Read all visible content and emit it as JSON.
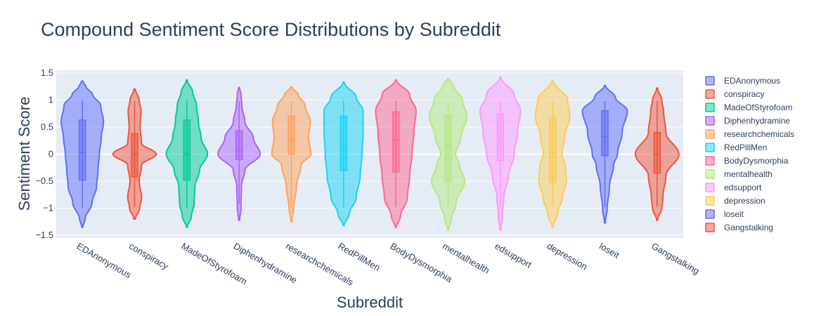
{
  "chart_data": {
    "type": "violin",
    "title": "Compound Sentiment Score Distributions by Subreddit",
    "xlabel": "Subreddit",
    "ylabel": "Sentiment Score",
    "ylim": [
      -1.55,
      1.55
    ],
    "yticks": [
      -1.5,
      -1,
      -0.5,
      0,
      0.5,
      1,
      1.5
    ],
    "ytick_labels": [
      "−1.5",
      "−1",
      "−0.5",
      "0",
      "0.5",
      "1",
      "1.5"
    ],
    "grid": true,
    "legend_position": "right",
    "categories": [
      "EDAnonymous",
      "conspiracy",
      "MadeOfStyrofoam",
      "Diphenhydramine",
      "researchchemicals",
      "RedPillMen",
      "BodyDysmorphia",
      "mentalhealth",
      "edsupport",
      "depression",
      "loseit",
      "Gangstalking"
    ],
    "series": [
      {
        "name": "EDAnonymous",
        "color": "#636efa",
        "min": -1,
        "q1": -0.48,
        "median": 0.03,
        "q3": 0.63,
        "max": 1,
        "kde_range": [
          -1.35,
          1.35
        ],
        "density": [
          [
            -1.35,
            0.02
          ],
          [
            -1.2,
            0.12
          ],
          [
            -0.9,
            0.42
          ],
          [
            -0.6,
            0.62
          ],
          [
            -0.3,
            0.68
          ],
          [
            0,
            0.74
          ],
          [
            0.3,
            0.82
          ],
          [
            0.6,
            0.92
          ],
          [
            0.9,
            0.8
          ],
          [
            1.1,
            0.45
          ],
          [
            1.25,
            0.15
          ],
          [
            1.35,
            0.02
          ]
        ]
      },
      {
        "name": "conspiracy",
        "color": "#ef553b",
        "min": -0.98,
        "q1": -0.42,
        "median": 0,
        "q3": 0.38,
        "max": 0.98,
        "kde_range": [
          -1.2,
          1.2
        ],
        "density": [
          [
            -1.2,
            0.03
          ],
          [
            -1,
            0.22
          ],
          [
            -0.8,
            0.3
          ],
          [
            -0.5,
            0.2
          ],
          [
            -0.2,
            0.3
          ],
          [
            0,
            0.95
          ],
          [
            0.2,
            0.3
          ],
          [
            0.5,
            0.24
          ],
          [
            0.8,
            0.28
          ],
          [
            1,
            0.2
          ],
          [
            1.2,
            0.03
          ]
        ]
      },
      {
        "name": "MadeOfStyrofoam",
        "color": "#00cc96",
        "min": -1,
        "q1": -0.48,
        "median": 0,
        "q3": 0.63,
        "max": 1,
        "kde_range": [
          -1.35,
          1.37
        ],
        "density": [
          [
            -1.35,
            0.02
          ],
          [
            -1.15,
            0.2
          ],
          [
            -0.9,
            0.32
          ],
          [
            -0.6,
            0.35
          ],
          [
            -0.3,
            0.55
          ],
          [
            0,
            0.9
          ],
          [
            0.3,
            0.62
          ],
          [
            0.6,
            0.5
          ],
          [
            0.9,
            0.42
          ],
          [
            1.15,
            0.25
          ],
          [
            1.37,
            0.02
          ]
        ]
      },
      {
        "name": "Diphenhydramine",
        "color": "#ab63fa",
        "min": -0.92,
        "q1": -0.1,
        "median": 0.07,
        "q3": 0.43,
        "max": 0.98,
        "kde_range": [
          -1.22,
          1.23
        ],
        "density": [
          [
            -1.22,
            0.02
          ],
          [
            -1,
            0.08
          ],
          [
            -0.6,
            0.1
          ],
          [
            -0.3,
            0.25
          ],
          [
            0,
            0.92
          ],
          [
            0.3,
            0.62
          ],
          [
            0.6,
            0.25
          ],
          [
            0.9,
            0.12
          ],
          [
            1.1,
            0.08
          ],
          [
            1.23,
            0.02
          ]
        ]
      },
      {
        "name": "researchchemicals",
        "color": "#ffa15a",
        "min": -0.98,
        "q1": 0,
        "median": 0.27,
        "q3": 0.7,
        "max": 0.98,
        "kde_range": [
          -1.25,
          1.24
        ],
        "density": [
          [
            -1.25,
            0.02
          ],
          [
            -1,
            0.1
          ],
          [
            -0.6,
            0.22
          ],
          [
            -0.2,
            0.42
          ],
          [
            0,
            0.85
          ],
          [
            0.3,
            0.75
          ],
          [
            0.6,
            0.82
          ],
          [
            0.9,
            0.6
          ],
          [
            1.1,
            0.3
          ],
          [
            1.24,
            0.02
          ]
        ]
      },
      {
        "name": "RedPillMen",
        "color": "#19d3f3",
        "min": -0.99,
        "q1": -0.3,
        "median": 0.15,
        "q3": 0.7,
        "max": 0.99,
        "kde_range": [
          -1.32,
          1.33
        ],
        "density": [
          [
            -1.32,
            0.02
          ],
          [
            -1.1,
            0.25
          ],
          [
            -0.8,
            0.55
          ],
          [
            -0.4,
            0.72
          ],
          [
            0,
            0.8
          ],
          [
            0.4,
            0.85
          ],
          [
            0.8,
            0.85
          ],
          [
            1.05,
            0.55
          ],
          [
            1.33,
            0.02
          ]
        ]
      },
      {
        "name": "BodyDysmorphia",
        "color": "#ff6692",
        "min": -0.98,
        "q1": -0.33,
        "median": 0.26,
        "q3": 0.78,
        "max": 0.99,
        "kde_range": [
          -1.35,
          1.37
        ],
        "density": [
          [
            -1.35,
            0.02
          ],
          [
            -1.15,
            0.2
          ],
          [
            -0.8,
            0.5
          ],
          [
            -0.4,
            0.6
          ],
          [
            0,
            0.7
          ],
          [
            0.4,
            0.78
          ],
          [
            0.8,
            0.88
          ],
          [
            1.1,
            0.6
          ],
          [
            1.37,
            0.02
          ]
        ]
      },
      {
        "name": "mentalhealth",
        "color": "#b6e880",
        "min": -0.98,
        "q1": -0.5,
        "median": 0.15,
        "q3": 0.72,
        "max": 0.98,
        "kde_range": [
          -1.4,
          1.4
        ],
        "density": [
          [
            -1.4,
            0.02
          ],
          [
            -1.2,
            0.15
          ],
          [
            -0.9,
            0.35
          ],
          [
            -0.5,
            0.72
          ],
          [
            -0.2,
            0.5
          ],
          [
            0,
            0.32
          ],
          [
            0.3,
            0.55
          ],
          [
            0.7,
            0.82
          ],
          [
            1,
            0.62
          ],
          [
            1.25,
            0.25
          ],
          [
            1.4,
            0.02
          ]
        ]
      },
      {
        "name": "edsupport",
        "color": "#ff97ff",
        "min": -0.98,
        "q1": -0.12,
        "median": 0.27,
        "q3": 0.74,
        "max": 0.99,
        "kde_range": [
          -1.4,
          1.42
        ],
        "density": [
          [
            -1.4,
            0.02
          ],
          [
            -1.15,
            0.08
          ],
          [
            -0.8,
            0.15
          ],
          [
            -0.4,
            0.35
          ],
          [
            0,
            0.6
          ],
          [
            0.4,
            0.75
          ],
          [
            0.8,
            0.88
          ],
          [
            1.1,
            0.6
          ],
          [
            1.42,
            0.02
          ]
        ]
      },
      {
        "name": "depression",
        "color": "#fecb52",
        "min": -0.98,
        "q1": -0.52,
        "median": 0.02,
        "q3": 0.67,
        "max": 0.98,
        "kde_range": [
          -1.35,
          1.36
        ],
        "density": [
          [
            -1.35,
            0.02
          ],
          [
            -1.1,
            0.22
          ],
          [
            -0.8,
            0.42
          ],
          [
            -0.5,
            0.6
          ],
          [
            -0.2,
            0.55
          ],
          [
            0,
            0.4
          ],
          [
            0.3,
            0.52
          ],
          [
            0.7,
            0.75
          ],
          [
            1,
            0.65
          ],
          [
            1.36,
            0.02
          ]
        ]
      },
      {
        "name": "loseit",
        "color": "#636efa",
        "min": -0.98,
        "q1": -0.03,
        "median": 0.32,
        "q3": 0.8,
        "max": 0.98,
        "kde_range": [
          -1.27,
          1.27
        ],
        "density": [
          [
            -1.27,
            0.02
          ],
          [
            -1,
            0.1
          ],
          [
            -0.6,
            0.2
          ],
          [
            -0.2,
            0.38
          ],
          [
            0,
            0.55
          ],
          [
            0.4,
            0.75
          ],
          [
            0.8,
            0.98
          ],
          [
            1.05,
            0.45
          ],
          [
            1.27,
            0.02
          ]
        ]
      },
      {
        "name": "Gangstalking",
        "color": "#ef553b",
        "min": -0.98,
        "q1": -0.35,
        "median": 0,
        "q3": 0.4,
        "max": 0.98,
        "kde_range": [
          -1.22,
          1.22
        ],
        "density": [
          [
            -1.22,
            0.02
          ],
          [
            -1,
            0.2
          ],
          [
            -0.8,
            0.25
          ],
          [
            -0.4,
            0.38
          ],
          [
            0,
            0.95
          ],
          [
            0.4,
            0.38
          ],
          [
            0.8,
            0.28
          ],
          [
            1,
            0.2
          ],
          [
            1.22,
            0.02
          ]
        ]
      }
    ]
  }
}
